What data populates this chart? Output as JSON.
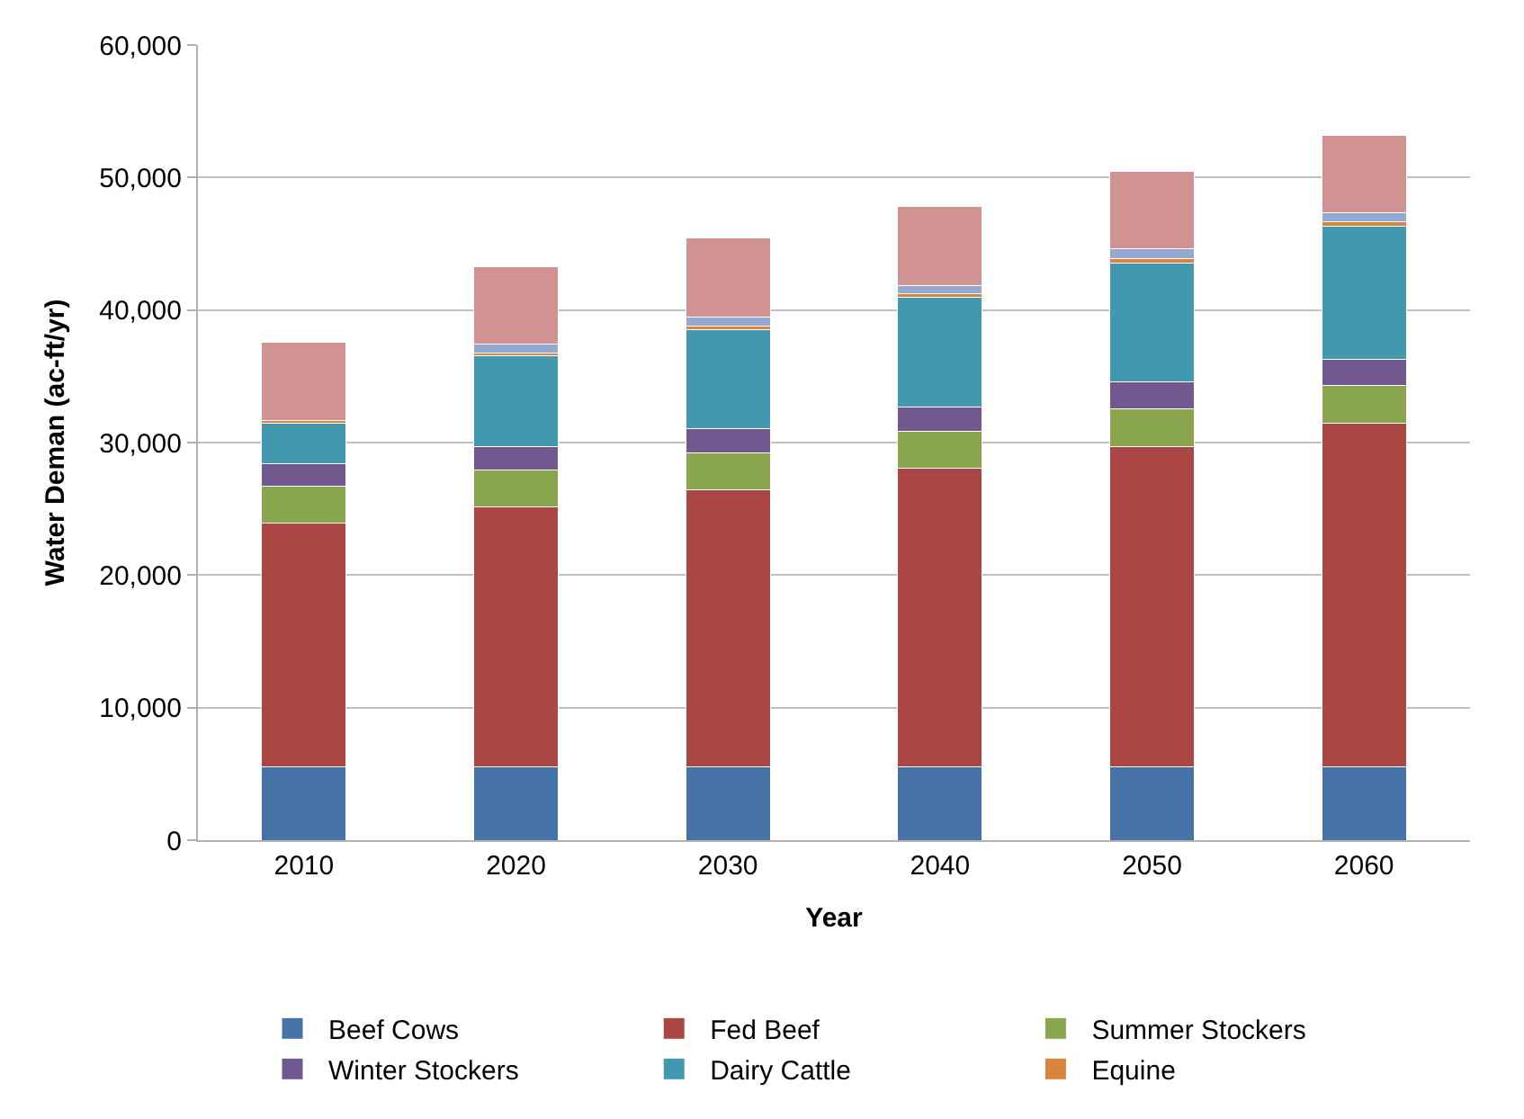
{
  "chart_data": {
    "type": "bar",
    "stacked": true,
    "xlabel": "Year",
    "ylabel": "Water Deman (ac-ft/yr)",
    "categories": [
      "2010",
      "2020",
      "2030",
      "2040",
      "2050",
      "2060"
    ],
    "series": [
      {
        "name": "Beef Cows",
        "color": "#4572a7",
        "values": [
          5500,
          5500,
          5500,
          5500,
          5500,
          5500
        ]
      },
      {
        "name": "Fed Beef",
        "color": "#aa4643",
        "values": [
          18400,
          19650,
          20950,
          22550,
          24200,
          25950
        ]
      },
      {
        "name": "Summer Stockers",
        "color": "#89a54e",
        "values": [
          2800,
          2750,
          2800,
          2800,
          2850,
          2850
        ]
      },
      {
        "name": "Winter Stockers",
        "color": "#71588f",
        "values": [
          1700,
          1800,
          1800,
          1850,
          2000,
          1950
        ]
      },
      {
        "name": "Dairy Cattle",
        "color": "#4198af",
        "values": [
          3050,
          6850,
          7450,
          8250,
          9000,
          10100
        ]
      },
      {
        "name": "Equine",
        "color": "#db843d",
        "values": [
          200,
          200,
          300,
          250,
          300,
          300
        ]
      },
      {
        "color": "#93a9cf",
        "values": [
          null,
          650,
          700,
          650,
          750,
          700
        ]
      },
      {
        "color": "#d19392",
        "values": [
          5900,
          5900,
          5950,
          5950,
          5850,
          5850
        ]
      }
    ],
    "ylim": [
      0,
      60000
    ],
    "yticks": [
      {
        "value": 0,
        "label": "0"
      },
      {
        "value": 10000,
        "label": "10,000"
      },
      {
        "value": 20000,
        "label": "20,000"
      },
      {
        "value": 30000,
        "label": "30,000"
      },
      {
        "value": 40000,
        "label": "40,000"
      },
      {
        "value": 50000,
        "label": "50,000"
      },
      {
        "value": 60000,
        "label": "60,000"
      }
    ],
    "grid": "y",
    "legend": "bottom"
  }
}
